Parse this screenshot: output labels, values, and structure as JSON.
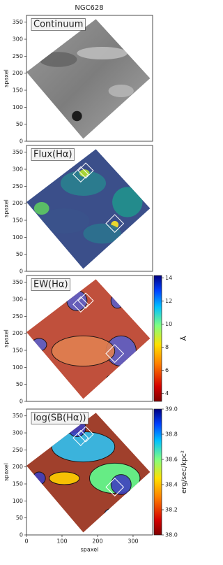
{
  "chart_data": {
    "type": "image-grid",
    "title": "NGC628",
    "xlabel": "spaxel",
    "xlim": [
      0,
      355
    ],
    "xticks": [
      0,
      100,
      200,
      300
    ],
    "ylim": [
      0,
      370
    ],
    "yticks": [
      0,
      50,
      100,
      150,
      200,
      250,
      300,
      350
    ],
    "panels": [
      {
        "label": "Continuum",
        "ylabel": "spaxel",
        "style": "gray"
      },
      {
        "label": "Flux(Hα)",
        "ylabel": "spaxel",
        "style": "viridis"
      },
      {
        "label": "EW(Hα)",
        "ylabel": "spaxel",
        "style": "ew",
        "colorbar": {
          "label": "Å",
          "lim": [
            3.3,
            14.2
          ],
          "ticks": [
            4,
            6,
            8,
            10,
            12,
            14
          ]
        }
      },
      {
        "label": "log(SB(Hα))",
        "ylabel": "spaxel",
        "style": "sb",
        "colorbar": {
          "label": "erg/sec/kpc²",
          "lim": [
            38.0,
            39.0
          ],
          "ticks": [
            {
              "value": 38,
              "label": "38.0"
            },
            38.2,
            38.4,
            38.6,
            38.8,
            {
              "value": 39,
              "label": "39.0"
            }
          ]
        }
      }
    ]
  }
}
